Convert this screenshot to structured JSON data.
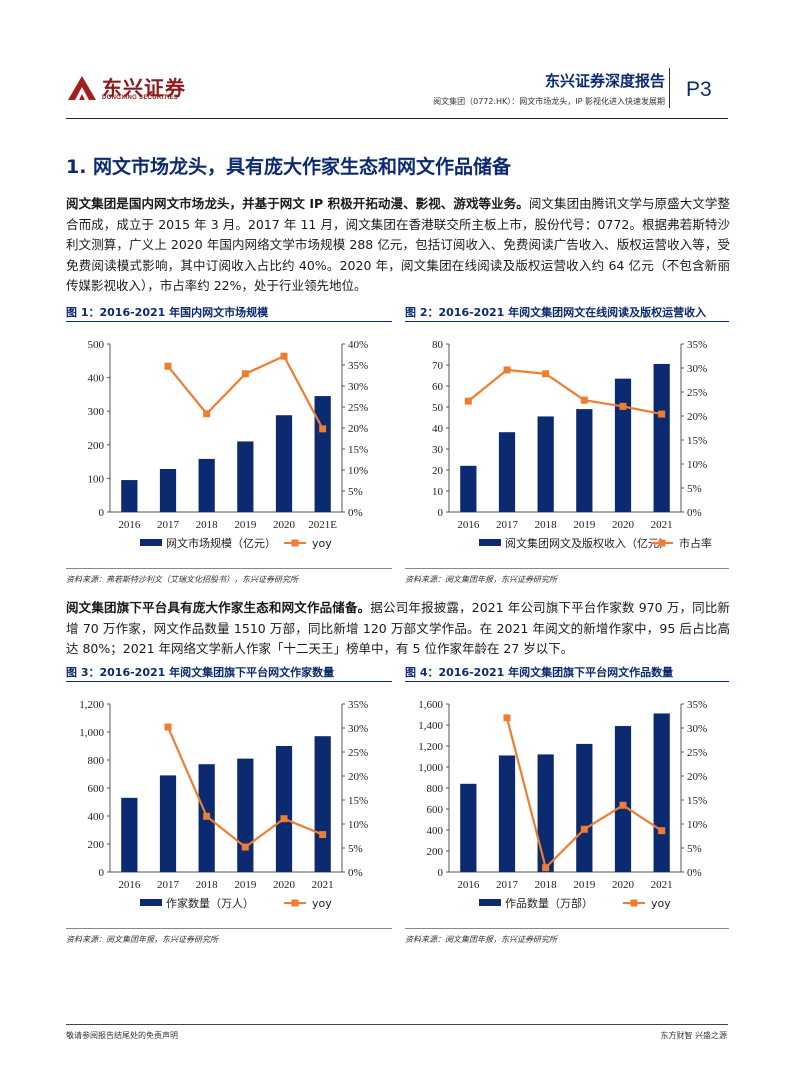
{
  "header": {
    "logo_cn": "东兴证券",
    "logo_en": "DONGXING SECURITIES",
    "report_title": "东兴证券深度报告",
    "report_subtitle": "阅文集团（0772.HK）：网文市场龙头，IP 影视化进入快速发展期",
    "page": "P3"
  },
  "section_title": "1. 网文市场龙头，具有庞大作家生态和网文作品储备",
  "para1": {
    "lead": "阅文集团是国内网文市场龙头，并基于网文 IP 积极开拓动漫、影视、游戏等业务。",
    "rest": "阅文集团由腾讯文学与原盛大文学整合而成，成立于 2015 年 3 月。2017 年 11 月，阅文集团在香港联交所主板上市，股份代号：0772。根据弗若斯特沙利文测算，广义上 2020 年国内网络文学市场规模 288 亿元，包括订阅收入、免费阅读广告收入、版权运营收入等，受免费阅读模式影响，其中订阅收入占比约 40%。2020 年，阅文集团在线阅读及版权运营收入约 64 亿元（不包含新丽传媒影视收入），市占率约 22%，处于行业领先地位。"
  },
  "para2": {
    "lead": "阅文集团旗下平台具有庞大作家生态和网文作品储备。",
    "rest": "据公司年报披露，2021 年公司旗下平台作家数 970 万，同比新增 70 万作家，网文作品数量 1510 万部，同比新增 120 万部文学作品。在 2021 年阅文的新增作家中，95 后占比高达 80%；2021 年网络文学新人作家「十二天王」榜单中，有 5 位作家年龄在 27 岁以下。"
  },
  "figures": [
    {
      "title": "图 1：2016-2021 年国内网文市场规模",
      "source": "资料来源：弗若斯特沙利文（艾瑞文化招股书），东兴证券研究所"
    },
    {
      "title": "图 2：2016-2021 年阅文集团网文在线阅读及版权运营收入",
      "source": "资料来源：阅文集团年报，东兴证券研究所"
    },
    {
      "title": "图 3：2016-2021 年阅文集团旗下平台网文作家数量",
      "source": "资料来源：阅文集团年报，东兴证券研究所"
    },
    {
      "title": "图 4：2016-2021 年阅文集团旗下平台网文作品数量",
      "source": "资料来源：阅文集团年报，东兴证券研究所"
    }
  ],
  "colors": {
    "bar": "#0b2a6f",
    "line": "#ee7d31",
    "title": "#0b2a6f"
  },
  "chart_data": [
    {
      "type": "bar",
      "categories": [
        "2016",
        "2017",
        "2018",
        "2019",
        "2020",
        "2021E"
      ],
      "series": [
        {
          "name": "网文市场规模（亿元）",
          "axis": "left",
          "kind": "bar",
          "values": [
            95,
            128,
            158,
            210,
            288,
            345
          ]
        },
        {
          "name": "yoy",
          "axis": "right",
          "kind": "line",
          "values": [
            null,
            34.7,
            23.4,
            32.9,
            37.1,
            19.8
          ]
        }
      ],
      "ylim": [
        0,
        500
      ],
      "yticks": [
        "0",
        "100",
        "200",
        "300",
        "400",
        "500"
      ],
      "y2lim": [
        0,
        40
      ],
      "y2ticks": [
        "0%",
        "5%",
        "10%",
        "15%",
        "20%",
        "25%",
        "30%",
        "35%",
        "40%"
      ]
    },
    {
      "type": "bar",
      "categories": [
        "2016",
        "2017",
        "2018",
        "2019",
        "2020",
        "2021"
      ],
      "series": [
        {
          "name": "阅文集团网文及版权收入（亿元）",
          "axis": "left",
          "kind": "bar",
          "values": [
            22,
            38,
            45.5,
            49,
            63.5,
            70.5
          ]
        },
        {
          "name": "市占率",
          "axis": "right",
          "kind": "line",
          "values": [
            23.1,
            29.6,
            28.8,
            23.3,
            22.0,
            20.4
          ]
        }
      ],
      "ylim": [
        0,
        80
      ],
      "yticks": [
        "0",
        "10",
        "20",
        "30",
        "40",
        "50",
        "60",
        "70",
        "80"
      ],
      "y2lim": [
        0,
        35
      ],
      "y2ticks": [
        "0%",
        "5%",
        "10%",
        "15%",
        "20%",
        "25%",
        "30%",
        "35%"
      ]
    },
    {
      "type": "bar",
      "categories": [
        "2016",
        "2017",
        "2018",
        "2019",
        "2020",
        "2021"
      ],
      "series": [
        {
          "name": "作家数量（万人）",
          "axis": "left",
          "kind": "bar",
          "values": [
            530,
            690,
            770,
            810,
            900,
            970
          ]
        },
        {
          "name": "yoy",
          "axis": "right",
          "kind": "line",
          "values": [
            null,
            30.2,
            11.6,
            5.2,
            11.1,
            7.8
          ]
        }
      ],
      "ylim": [
        0,
        1200
      ],
      "yticks": [
        "0",
        "200",
        "400",
        "600",
        "800",
        "1,000",
        "1,200"
      ],
      "y2lim": [
        0,
        35
      ],
      "y2ticks": [
        "0%",
        "5%",
        "10%",
        "15%",
        "20%",
        "25%",
        "30%",
        "35%"
      ]
    },
    {
      "type": "bar",
      "categories": [
        "2016",
        "2017",
        "2018",
        "2019",
        "2020",
        "2021"
      ],
      "series": [
        {
          "name": "作品数量（万部）",
          "axis": "left",
          "kind": "bar",
          "values": [
            840,
            1110,
            1120,
            1220,
            1390,
            1510
          ]
        },
        {
          "name": "yoy",
          "axis": "right",
          "kind": "line",
          "values": [
            null,
            32.1,
            0.9,
            8.9,
            13.9,
            8.6
          ]
        }
      ],
      "ylim": [
        0,
        1600
      ],
      "yticks": [
        "0",
        "200",
        "400",
        "600",
        "800",
        "1,000",
        "1,200",
        "1,400",
        "1,600"
      ],
      "y2lim": [
        0,
        35
      ],
      "y2ticks": [
        "0%",
        "5%",
        "10%",
        "15%",
        "20%",
        "25%",
        "30%",
        "35%"
      ]
    }
  ],
  "footer": {
    "left": "敬请参阅报告结尾处的免责声明",
    "right": "东方财智 兴盛之源"
  }
}
